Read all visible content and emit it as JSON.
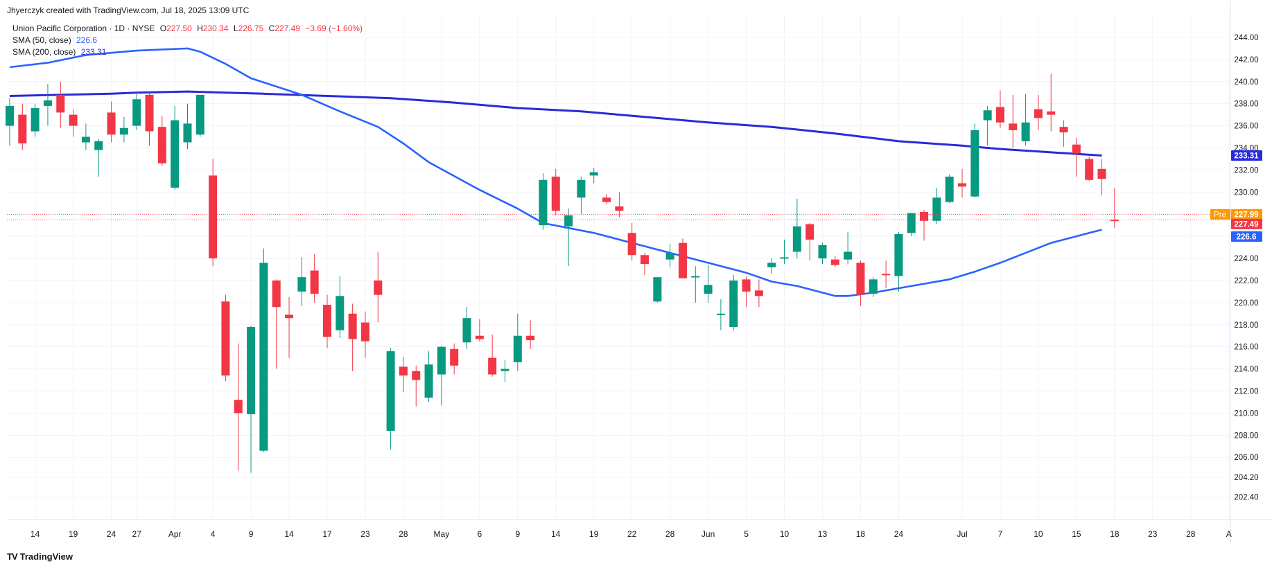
{
  "header": {
    "text": "Jhyerczyk created with TradingView.com, Jul 18, 2025 13:09 UTC"
  },
  "legend": {
    "symbol": "Union Pacific Corporation · 1D · NYSE",
    "o_label": "O",
    "o": "227.50",
    "h_label": "H",
    "h": "230.34",
    "l_label": "L",
    "l": "226.75",
    "c_label": "C",
    "c": "227.49",
    "change": "−3.69 (−1.60%)",
    "sma50_label": "SMA (50, close)",
    "sma50_value": "226.6",
    "sma200_label": "SMA (200, close)",
    "sma200_value": "233.31"
  },
  "footer": {
    "logo": "TV",
    "brand": "TradingView"
  },
  "colors": {
    "up": "#089981",
    "down": "#f23645",
    "sma": "#2962ff",
    "sma200": "#2a2ad9",
    "pre": "#ff9800"
  },
  "chart_data": {
    "type": "candlestick",
    "title": "Union Pacific Corporation · 1D · NYSE",
    "y_range": [
      201.0,
      245.5
    ],
    "y_ticks": [
      "202.40",
      "204.20",
      "206.00",
      "208.00",
      "210.00",
      "212.00",
      "214.00",
      "216.00",
      "218.00",
      "220.00",
      "222.00",
      "224.00",
      "226.00",
      "228.00",
      "230.00",
      "232.00",
      "234.00",
      "236.00",
      "238.00",
      "240.00",
      "242.00",
      "244.00"
    ],
    "x_ticks": [
      {
        "i": 2,
        "label": "14"
      },
      {
        "i": 5,
        "label": "19"
      },
      {
        "i": 8,
        "label": "24"
      },
      {
        "i": 10,
        "label": "27"
      },
      {
        "i": 13,
        "label": "Apr"
      },
      {
        "i": 16,
        "label": "4"
      },
      {
        "i": 19,
        "label": "9"
      },
      {
        "i": 22,
        "label": "14"
      },
      {
        "i": 25,
        "label": "17"
      },
      {
        "i": 28,
        "label": "23"
      },
      {
        "i": 31,
        "label": "28"
      },
      {
        "i": 34,
        "label": "May"
      },
      {
        "i": 37,
        "label": "6"
      },
      {
        "i": 40,
        "label": "9"
      },
      {
        "i": 43,
        "label": "14"
      },
      {
        "i": 46,
        "label": "19"
      },
      {
        "i": 49,
        "label": "22"
      },
      {
        "i": 52,
        "label": "28"
      },
      {
        "i": 55,
        "label": "Jun"
      },
      {
        "i": 58,
        "label": "5"
      },
      {
        "i": 61,
        "label": "10"
      },
      {
        "i": 64,
        "label": "13"
      },
      {
        "i": 67,
        "label": "18"
      },
      {
        "i": 70,
        "label": "24"
      },
      {
        "i": 75,
        "label": "Jul"
      },
      {
        "i": 78,
        "label": "7"
      },
      {
        "i": 81,
        "label": "10"
      },
      {
        "i": 84,
        "label": "15"
      },
      {
        "i": 87,
        "label": "18"
      },
      {
        "i": 90,
        "label": "23"
      },
      {
        "i": 93,
        "label": "28"
      },
      {
        "i": 96,
        "label": "A"
      }
    ],
    "candles": [
      {
        "o": 236.0,
        "h": 238.5,
        "l": 234.2,
        "c": 237.8
      },
      {
        "o": 237.0,
        "h": 238.0,
        "l": 233.8,
        "c": 234.4
      },
      {
        "o": 235.5,
        "h": 238.0,
        "l": 235.0,
        "c": 237.6
      },
      {
        "o": 237.8,
        "h": 239.8,
        "l": 236.0,
        "c": 238.3
      },
      {
        "o": 238.8,
        "h": 240.0,
        "l": 235.8,
        "c": 237.2
      },
      {
        "o": 237.0,
        "h": 237.5,
        "l": 235.0,
        "c": 236.0
      },
      {
        "o": 234.5,
        "h": 236.2,
        "l": 233.8,
        "c": 235.0
      },
      {
        "o": 233.8,
        "h": 234.8,
        "l": 231.4,
        "c": 234.6
      },
      {
        "o": 237.2,
        "h": 238.2,
        "l": 234.5,
        "c": 235.2
      },
      {
        "o": 235.2,
        "h": 236.8,
        "l": 234.5,
        "c": 235.8
      },
      {
        "o": 236.0,
        "h": 239.0,
        "l": 235.6,
        "c": 238.4
      },
      {
        "o": 238.8,
        "h": 239.0,
        "l": 234.2,
        "c": 235.5
      },
      {
        "o": 235.9,
        "h": 236.9,
        "l": 232.4,
        "c": 232.6
      },
      {
        "o": 230.4,
        "h": 237.8,
        "l": 230.2,
        "c": 236.5
      },
      {
        "o": 234.5,
        "h": 238.0,
        "l": 233.9,
        "c": 236.2
      },
      {
        "o": 235.2,
        "h": 238.8,
        "l": 235.0,
        "c": 238.8
      },
      {
        "o": 231.5,
        "h": 233.0,
        "l": 223.3,
        "c": 224.0
      },
      {
        "o": 220.1,
        "h": 220.7,
        "l": 212.9,
        "c": 213.4
      },
      {
        "o": 211.2,
        "h": 216.3,
        "l": 204.8,
        "c": 210.0
      },
      {
        "o": 209.9,
        "h": 217.9,
        "l": 204.6,
        "c": 217.8
      },
      {
        "o": 206.6,
        "h": 224.9,
        "l": 206.5,
        "c": 223.6
      },
      {
        "o": 222.0,
        "h": 222.1,
        "l": 214.0,
        "c": 219.6
      },
      {
        "o": 218.9,
        "h": 220.5,
        "l": 215.0,
        "c": 218.6
      },
      {
        "o": 221.0,
        "h": 224.1,
        "l": 219.7,
        "c": 222.3
      },
      {
        "o": 222.9,
        "h": 224.4,
        "l": 220.0,
        "c": 220.8
      },
      {
        "o": 219.8,
        "h": 220.7,
        "l": 215.9,
        "c": 216.9
      },
      {
        "o": 217.5,
        "h": 222.4,
        "l": 216.8,
        "c": 220.6
      },
      {
        "o": 219.0,
        "h": 219.9,
        "l": 213.8,
        "c": 216.7
      },
      {
        "o": 218.2,
        "h": 219.2,
        "l": 215.0,
        "c": 216.5
      },
      {
        "o": 222.0,
        "h": 224.6,
        "l": 218.2,
        "c": 220.7
      },
      {
        "o": 208.4,
        "h": 215.9,
        "l": 206.7,
        "c": 215.6
      },
      {
        "o": 214.2,
        "h": 215.1,
        "l": 211.9,
        "c": 213.4
      },
      {
        "o": 213.8,
        "h": 214.3,
        "l": 210.6,
        "c": 213.0
      },
      {
        "o": 211.4,
        "h": 215.6,
        "l": 211.0,
        "c": 214.4
      },
      {
        "o": 213.5,
        "h": 216.1,
        "l": 210.7,
        "c": 216.0
      },
      {
        "o": 215.8,
        "h": 216.3,
        "l": 213.5,
        "c": 214.3
      },
      {
        "o": 216.4,
        "h": 219.6,
        "l": 215.8,
        "c": 218.6
      },
      {
        "o": 217.0,
        "h": 218.5,
        "l": 216.5,
        "c": 216.7
      },
      {
        "o": 215.0,
        "h": 217.1,
        "l": 213.3,
        "c": 213.5
      },
      {
        "o": 213.8,
        "h": 214.8,
        "l": 212.8,
        "c": 214.0
      },
      {
        "o": 214.6,
        "h": 219.0,
        "l": 213.8,
        "c": 217.0
      },
      {
        "o": 217.0,
        "h": 218.4,
        "l": 215.8,
        "c": 216.6
      },
      {
        "o": 227.0,
        "h": 231.7,
        "l": 226.6,
        "c": 231.1
      },
      {
        "o": 231.4,
        "h": 232.1,
        "l": 227.9,
        "c": 228.3
      },
      {
        "o": 226.9,
        "h": 228.5,
        "l": 223.3,
        "c": 227.9
      },
      {
        "o": 229.5,
        "h": 231.4,
        "l": 228.0,
        "c": 231.1
      },
      {
        "o": 231.5,
        "h": 232.2,
        "l": 230.8,
        "c": 231.8
      },
      {
        "o": 229.5,
        "h": 229.8,
        "l": 228.9,
        "c": 229.1
      },
      {
        "o": 228.7,
        "h": 230.0,
        "l": 227.7,
        "c": 228.3
      },
      {
        "o": 226.3,
        "h": 227.2,
        "l": 223.8,
        "c": 224.3
      },
      {
        "o": 224.3,
        "h": 224.5,
        "l": 222.5,
        "c": 223.5
      },
      {
        "o": 220.1,
        "h": 222.1,
        "l": 220.0,
        "c": 222.3
      },
      {
        "o": 223.9,
        "h": 225.3,
        "l": 223.2,
        "c": 224.5
      },
      {
        "o": 225.4,
        "h": 225.8,
        "l": 222.2,
        "c": 222.2
      },
      {
        "o": 222.3,
        "h": 223.3,
        "l": 220.0,
        "c": 222.4
      },
      {
        "o": 220.8,
        "h": 223.4,
        "l": 220.0,
        "c": 221.6
      },
      {
        "o": 218.9,
        "h": 220.3,
        "l": 217.5,
        "c": 219.0
      },
      {
        "o": 217.8,
        "h": 222.5,
        "l": 217.5,
        "c": 222.0
      },
      {
        "o": 222.1,
        "h": 222.4,
        "l": 219.6,
        "c": 221.0
      },
      {
        "o": 221.1,
        "h": 222.1,
        "l": 219.6,
        "c": 220.6
      },
      {
        "o": 223.2,
        "h": 224.0,
        "l": 222.6,
        "c": 223.6
      },
      {
        "o": 224.1,
        "h": 225.7,
        "l": 223.5,
        "c": 224.1
      },
      {
        "o": 224.6,
        "h": 229.4,
        "l": 224.0,
        "c": 226.9
      },
      {
        "o": 227.1,
        "h": 227.2,
        "l": 223.8,
        "c": 225.7
      },
      {
        "o": 224.0,
        "h": 225.4,
        "l": 223.5,
        "c": 225.2
      },
      {
        "o": 223.9,
        "h": 224.2,
        "l": 223.2,
        "c": 223.4
      },
      {
        "o": 223.9,
        "h": 226.4,
        "l": 223.5,
        "c": 224.6
      },
      {
        "o": 223.6,
        "h": 223.8,
        "l": 219.7,
        "c": 220.7
      },
      {
        "o": 220.8,
        "h": 222.3,
        "l": 220.5,
        "c": 222.1
      },
      {
        "o": 222.6,
        "h": 223.8,
        "l": 221.3,
        "c": 222.5
      },
      {
        "o": 222.4,
        "h": 226.4,
        "l": 221.0,
        "c": 226.2
      },
      {
        "o": 226.3,
        "h": 228.1,
        "l": 226.0,
        "c": 228.1
      },
      {
        "o": 228.2,
        "h": 228.4,
        "l": 225.6,
        "c": 227.4
      },
      {
        "o": 227.4,
        "h": 230.4,
        "l": 227.1,
        "c": 229.5
      },
      {
        "o": 229.1,
        "h": 231.6,
        "l": 229.0,
        "c": 231.4
      },
      {
        "o": 230.8,
        "h": 232.1,
        "l": 229.5,
        "c": 230.5
      },
      {
        "o": 229.6,
        "h": 236.2,
        "l": 229.5,
        "c": 235.6
      },
      {
        "o": 236.5,
        "h": 237.8,
        "l": 234.2,
        "c": 237.4
      },
      {
        "o": 237.7,
        "h": 239.2,
        "l": 235.8,
        "c": 236.3
      },
      {
        "o": 236.2,
        "h": 238.8,
        "l": 234.0,
        "c": 235.6
      },
      {
        "o": 234.6,
        "h": 238.9,
        "l": 234.2,
        "c": 236.3
      },
      {
        "o": 237.5,
        "h": 238.8,
        "l": 235.6,
        "c": 236.7
      },
      {
        "o": 237.3,
        "h": 240.7,
        "l": 235.5,
        "c": 237.0
      },
      {
        "o": 235.9,
        "h": 236.5,
        "l": 234.1,
        "c": 235.4
      },
      {
        "o": 234.3,
        "h": 234.9,
        "l": 231.4,
        "c": 233.5
      },
      {
        "o": 233.0,
        "h": 233.2,
        "l": 231.0,
        "c": 231.1
      },
      {
        "o": 232.1,
        "h": 233.0,
        "l": 229.7,
        "c": 231.2
      },
      {
        "o": 227.5,
        "h": 230.34,
        "l": 226.75,
        "c": 227.49
      }
    ],
    "sma_50": [
      [
        0,
        241.3
      ],
      [
        3,
        241.7
      ],
      [
        6,
        242.4
      ],
      [
        10,
        242.8
      ],
      [
        14,
        243.0
      ],
      [
        15,
        242.7
      ],
      [
        17,
        241.6
      ],
      [
        19,
        240.3
      ],
      [
        23,
        238.8
      ],
      [
        26,
        237.3
      ],
      [
        29,
        235.9
      ],
      [
        31,
        234.4
      ],
      [
        33,
        232.7
      ],
      [
        37,
        230.2
      ],
      [
        40,
        228.5
      ],
      [
        42,
        227.2
      ],
      [
        46,
        226.3
      ],
      [
        50,
        225.1
      ],
      [
        54,
        223.9
      ],
      [
        58,
        222.7
      ],
      [
        60,
        221.9
      ],
      [
        62,
        221.5
      ],
      [
        65,
        220.6
      ],
      [
        66,
        220.6
      ],
      [
        68,
        220.9
      ],
      [
        70,
        221.3
      ],
      [
        74,
        222.1
      ],
      [
        76,
        222.8
      ],
      [
        78,
        223.6
      ],
      [
        80,
        224.5
      ],
      [
        82,
        225.4
      ],
      [
        84,
        226.0
      ],
      [
        85,
        226.3
      ],
      [
        86,
        226.6
      ]
    ],
    "sma_200": [
      [
        0,
        238.7
      ],
      [
        4,
        238.8
      ],
      [
        8,
        238.9
      ],
      [
        10,
        239.0
      ],
      [
        14,
        239.1
      ],
      [
        17,
        239.0
      ],
      [
        20,
        238.9
      ],
      [
        25,
        238.7
      ],
      [
        30,
        238.5
      ],
      [
        35,
        238.1
      ],
      [
        40,
        237.6
      ],
      [
        45,
        237.3
      ],
      [
        50,
        236.8
      ],
      [
        55,
        236.3
      ],
      [
        60,
        235.9
      ],
      [
        65,
        235.3
      ],
      [
        70,
        234.6
      ],
      [
        75,
        234.2
      ],
      [
        78,
        233.9
      ],
      [
        82,
        233.6
      ],
      [
        86,
        233.31
      ]
    ],
    "price_labels": [
      {
        "value": 233.31,
        "text": "233.31",
        "color": "#2a2ad9"
      },
      {
        "value": 227.99,
        "text": "227.99",
        "prefix": "Pre",
        "color": "#ff9800"
      },
      {
        "value": 227.49,
        "text": "227.49",
        "color": "#f23645"
      },
      {
        "value": 226.6,
        "text": "226.6",
        "color": "#2962ff"
      }
    ],
    "xlabel": "",
    "ylabel": "",
    "grid": true
  }
}
